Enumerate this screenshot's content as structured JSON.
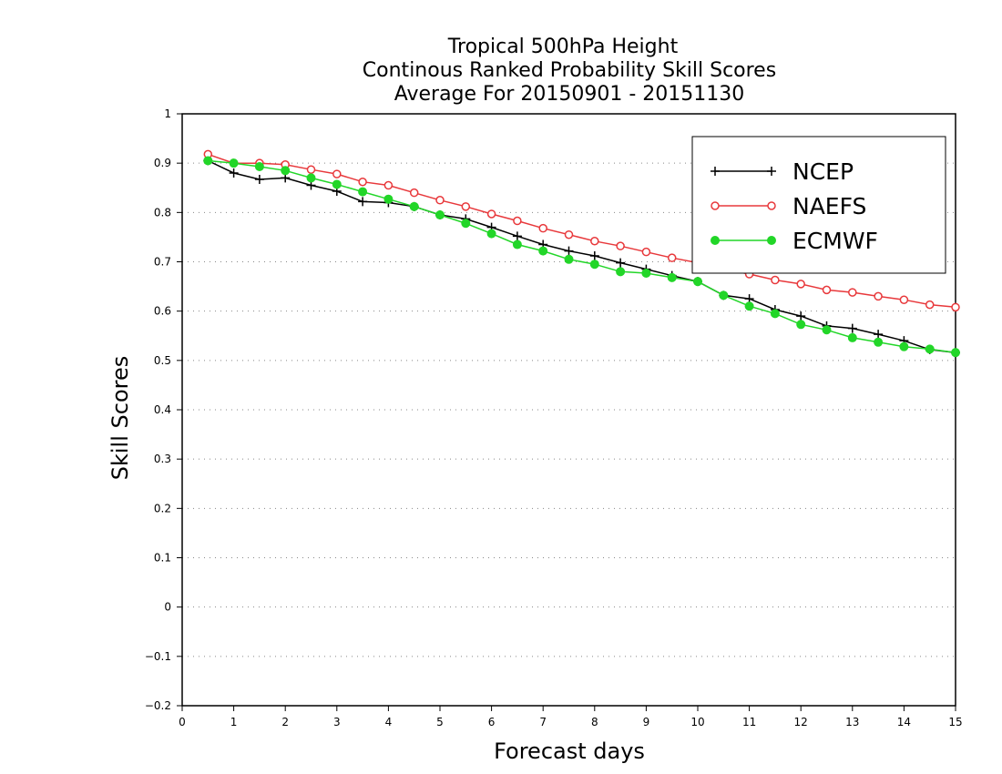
{
  "chart_data": {
    "type": "line",
    "title": [
      "Tropical 500hPa Height",
      "Continous Ranked Probability Skill Scores",
      "Average For 20150901 - 20151130"
    ],
    "xlabel": "Forecast days",
    "ylabel": "Skill Scores",
    "xlim": [
      0,
      15
    ],
    "ylim": [
      -0.2,
      1
    ],
    "xticks": [
      0,
      1,
      2,
      3,
      4,
      5,
      6,
      7,
      8,
      9,
      10,
      11,
      12,
      13,
      14,
      15
    ],
    "yticks": [
      -0.2,
      -0.1,
      0,
      0.1,
      0.2,
      0.3,
      0.4,
      0.5,
      0.6,
      0.7,
      0.8,
      0.9,
      1
    ],
    "ytick_labels": [
      "−0.2",
      "−0.1",
      "0",
      "0.1",
      "0.2",
      "0.3",
      "0.4",
      "0.5",
      "0.6",
      "0.7",
      "0.8",
      "0.9",
      "1"
    ],
    "grid": "horizontal dotted",
    "legend_position": "top-right",
    "x": [
      0.5,
      1,
      1.5,
      2,
      2.5,
      3,
      3.5,
      4,
      4.5,
      5,
      5.5,
      6,
      6.5,
      7,
      7.5,
      8,
      8.5,
      9,
      9.5,
      10,
      10.5,
      11,
      11.5,
      12,
      12.5,
      13,
      13.5,
      14,
      14.5,
      15
    ],
    "series": [
      {
        "name": "NCEP",
        "color": "#000000",
        "marker": "plus",
        "values": [
          0.905,
          0.88,
          0.867,
          0.87,
          0.855,
          0.843,
          0.822,
          0.82,
          0.812,
          0.795,
          0.787,
          0.77,
          0.752,
          0.735,
          0.722,
          0.712,
          0.698,
          0.685,
          0.672,
          0.66,
          0.632,
          0.625,
          0.603,
          0.59,
          0.57,
          0.565,
          0.553,
          0.54,
          0.522,
          0.516
        ]
      },
      {
        "name": "NAEFS",
        "color": "#e8383b",
        "marker": "open-circle",
        "values": [
          0.918,
          0.9,
          0.9,
          0.897,
          0.887,
          0.878,
          0.862,
          0.855,
          0.84,
          0.825,
          0.812,
          0.797,
          0.783,
          0.768,
          0.755,
          0.742,
          0.732,
          0.72,
          0.708,
          0.698,
          0.685,
          0.675,
          0.663,
          0.655,
          0.643,
          0.638,
          0.63,
          0.623,
          0.613,
          0.608
        ]
      },
      {
        "name": "ECMWF",
        "color": "#22d628",
        "marker": "filled-circle",
        "values": [
          0.905,
          0.9,
          0.893,
          0.885,
          0.87,
          0.857,
          0.842,
          0.827,
          0.812,
          0.795,
          0.778,
          0.757,
          0.735,
          0.722,
          0.705,
          0.695,
          0.68,
          0.677,
          0.668,
          0.66,
          0.632,
          0.61,
          0.595,
          0.573,
          0.562,
          0.546,
          0.537,
          0.528,
          0.523,
          0.516
        ]
      }
    ]
  }
}
